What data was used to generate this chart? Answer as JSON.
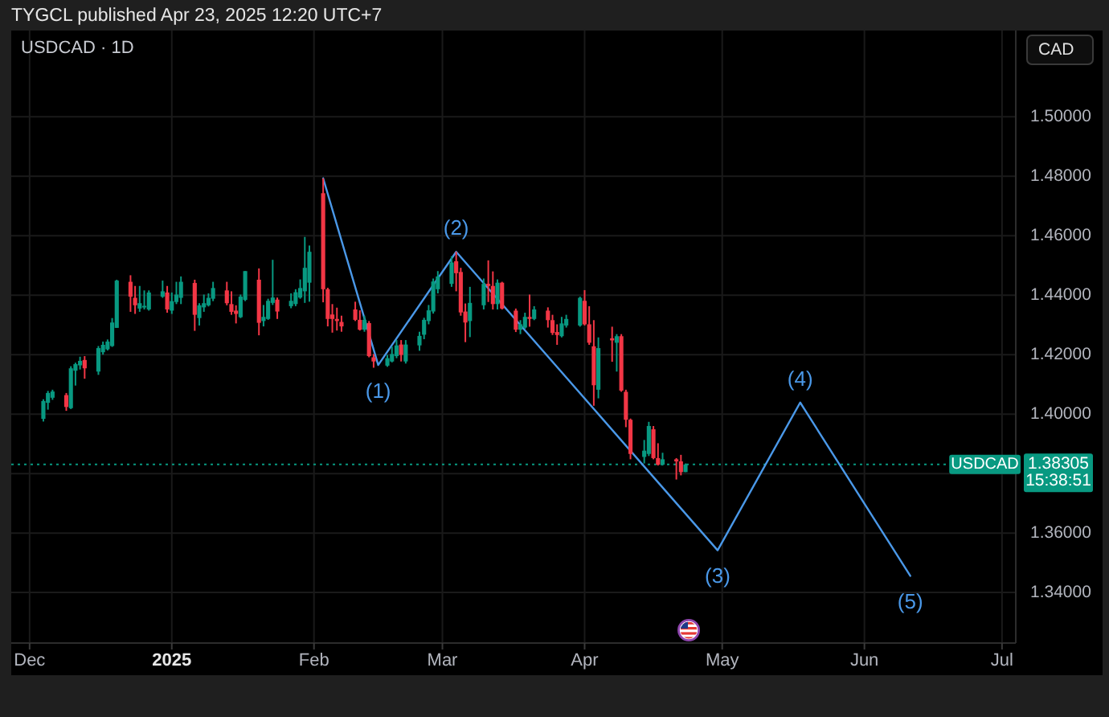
{
  "chart_data": {
    "type": "candlestick",
    "title": "USDCAD · 1D",
    "ylabel": "CAD",
    "x": [
      "2024-12-04",
      "2024-12-05",
      "2024-12-06",
      "2024-12-09",
      "2024-12-10",
      "2024-12-11",
      "2024-12-12",
      "2024-12-13",
      "2024-12-16",
      "2024-12-17",
      "2024-12-18",
      "2024-12-19",
      "2024-12-20",
      "2024-12-23",
      "2024-12-24",
      "2024-12-25",
      "2024-12-26",
      "2024-12-27",
      "2024-12-30",
      "2024-12-31",
      "2025-01-01",
      "2025-01-02",
      "2025-01-03",
      "2025-01-06",
      "2025-01-07",
      "2025-01-08",
      "2025-01-09",
      "2025-01-10",
      "2025-01-13",
      "2025-01-14",
      "2025-01-15",
      "2025-01-16",
      "2025-01-17",
      "2025-01-20",
      "2025-01-21",
      "2025-01-22",
      "2025-01-23",
      "2025-01-24",
      "2025-01-27",
      "2025-01-28",
      "2025-01-29",
      "2025-01-30",
      "2025-01-31",
      "2025-02-03",
      "2025-02-04",
      "2025-02-05",
      "2025-02-06",
      "2025-02-07",
      "2025-02-10",
      "2025-02-11",
      "2025-02-12",
      "2025-02-13",
      "2025-02-14",
      "2025-02-17",
      "2025-02-18",
      "2025-02-19",
      "2025-02-20",
      "2025-02-21",
      "2025-02-24",
      "2025-02-25",
      "2025-02-26",
      "2025-02-27",
      "2025-02-28",
      "2025-03-03",
      "2025-03-04",
      "2025-03-05",
      "2025-03-06",
      "2025-03-07",
      "2025-03-10",
      "2025-03-11",
      "2025-03-12",
      "2025-03-13",
      "2025-03-14",
      "2025-03-17",
      "2025-03-18",
      "2025-03-19",
      "2025-03-20",
      "2025-03-21",
      "2025-03-24",
      "2025-03-25",
      "2025-03-26",
      "2025-03-27",
      "2025-03-28",
      "2025-03-31",
      "2025-04-01",
      "2025-04-02",
      "2025-04-03",
      "2025-04-04",
      "2025-04-07",
      "2025-04-08",
      "2025-04-09",
      "2025-04-10",
      "2025-04-11",
      "2025-04-14",
      "2025-04-15",
      "2025-04-16",
      "2025-04-17",
      "2025-04-18",
      "2025-04-21",
      "2025-04-22",
      "2025-04-23"
    ],
    "ohlc": [
      [
        1.3984,
        1.405,
        1.3975,
        1.4044
      ],
      [
        1.4038,
        1.4078,
        1.4015,
        1.4071
      ],
      [
        1.4055,
        1.4082,
        1.4048,
        1.4076
      ],
      [
        1.4064,
        1.4071,
        1.4011,
        1.4024
      ],
      [
        1.402,
        1.4161,
        1.4017,
        1.4154
      ],
      [
        1.4146,
        1.4173,
        1.4096,
        1.4168
      ],
      [
        1.4164,
        1.4193,
        1.415,
        1.4179
      ],
      [
        1.4182,
        1.4195,
        1.4119,
        1.4154
      ],
      [
        1.4143,
        1.4229,
        1.4132,
        1.4222
      ],
      [
        1.4208,
        1.4244,
        1.42,
        1.4233
      ],
      [
        1.4218,
        1.4251,
        1.4214,
        1.4244
      ],
      [
        1.4229,
        1.4323,
        1.4226,
        1.4308
      ],
      [
        1.429,
        1.4452,
        1.429,
        1.4449
      ],
      [
        1.4445,
        1.4467,
        1.4344,
        1.4395
      ],
      [
        1.4391,
        1.4431,
        1.4337,
        1.4366
      ],
      [
        1.4355,
        1.4431,
        1.4344,
        1.4373
      ],
      [
        1.4362,
        1.4416,
        1.4352,
        1.4364
      ],
      [
        1.4352,
        1.4416,
        1.4348,
        1.4409
      ],
      [
        1.4395,
        1.4449,
        1.4391,
        1.4413
      ],
      [
        1.4409,
        1.4431,
        1.4341,
        1.4352
      ],
      [
        1.4348,
        1.4409,
        1.4337,
        1.438
      ],
      [
        1.4377,
        1.4445,
        1.437,
        1.4402
      ],
      [
        1.4391,
        1.4463,
        1.437,
        1.4445
      ],
      [
        1.4441,
        1.4452,
        1.428,
        1.4334
      ],
      [
        1.4323,
        1.4373,
        1.4298,
        1.4366
      ],
      [
        1.4359,
        1.4402,
        1.4344,
        1.4373
      ],
      [
        1.4366,
        1.4406,
        1.4362,
        1.4391
      ],
      [
        1.4388,
        1.4445,
        1.438,
        1.4424
      ],
      [
        1.4416,
        1.4445,
        1.4366,
        1.4373
      ],
      [
        1.437,
        1.4413,
        1.4334,
        1.4344
      ],
      [
        1.4348,
        1.4366,
        1.4305,
        1.4337
      ],
      [
        1.4326,
        1.4402,
        1.4323,
        1.4395
      ],
      [
        1.4384,
        1.4481,
        1.438,
        1.4481
      ],
      [
        1.4452,
        1.449,
        1.4265,
        1.4307
      ],
      [
        1.4313,
        1.4367,
        1.4295,
        1.4327
      ],
      [
        1.432,
        1.4388,
        1.4317,
        1.4381
      ],
      [
        1.4374,
        1.4519,
        1.4367,
        1.4392
      ],
      [
        1.4385,
        1.4392,
        1.432,
        1.4345
      ],
      [
        1.4363,
        1.4406,
        1.4356,
        1.4381
      ],
      [
        1.437,
        1.442,
        1.4363,
        1.441
      ],
      [
        1.4392,
        1.4453,
        1.4388,
        1.4424
      ],
      [
        1.4413,
        1.4596,
        1.4374,
        1.4492
      ],
      [
        1.4442,
        1.4567,
        1.4378,
        1.4546
      ],
      [
        1.4743,
        1.4793,
        1.4376,
        1.442
      ],
      [
        1.442,
        1.4425,
        1.4295,
        1.432
      ],
      [
        1.4335,
        1.437,
        1.4274,
        1.432
      ],
      [
        1.432,
        1.4358,
        1.4281,
        1.4313
      ],
      [
        1.431,
        1.4331,
        1.4277,
        1.4295
      ],
      [
        1.4352,
        1.4378,
        1.4313,
        1.4317
      ],
      [
        1.4317,
        1.4349,
        1.4281,
        1.4284
      ],
      [
        1.4284,
        1.4331,
        1.4277,
        1.4317
      ],
      [
        1.4306,
        1.4313,
        1.4191,
        1.4195
      ],
      [
        1.4191,
        1.4202,
        1.4156,
        1.4177
      ],
      [
        1.4163,
        1.4199,
        1.4159,
        1.4188
      ],
      [
        1.4177,
        1.4227,
        1.4174,
        1.4202
      ],
      [
        1.4195,
        1.4249,
        1.4188,
        1.4231
      ],
      [
        1.4234,
        1.4249,
        1.4177,
        1.4199
      ],
      [
        1.4177,
        1.4249,
        1.417,
        1.4234
      ],
      [
        1.4231,
        1.4277,
        1.4213,
        1.4263
      ],
      [
        1.4267,
        1.4324,
        1.4252,
        1.4317
      ],
      [
        1.4313,
        1.4367,
        1.4302,
        1.4349
      ],
      [
        1.4345,
        1.4456,
        1.4338,
        1.4446
      ],
      [
        1.442,
        1.4481,
        1.4406,
        1.4463
      ],
      [
        1.4438,
        1.4531,
        1.4428,
        1.451
      ],
      [
        1.4514,
        1.4546,
        1.4413,
        1.4474
      ],
      [
        1.4478,
        1.4492,
        1.4331,
        1.4342
      ],
      [
        1.4345,
        1.4372,
        1.4242,
        1.4308
      ],
      [
        1.4313,
        1.4428,
        1.4259,
        1.4374
      ],
      [
        1.4366,
        1.4456,
        1.4352,
        1.4438
      ],
      [
        1.4438,
        1.4517,
        1.4377,
        1.4431
      ],
      [
        1.4431,
        1.448,
        1.4352,
        1.437
      ],
      [
        1.437,
        1.4453,
        1.4352,
        1.4442
      ],
      [
        1.4442,
        1.4445,
        1.4352,
        1.4355
      ],
      [
        1.4348,
        1.4355,
        1.4276,
        1.4284
      ],
      [
        1.4284,
        1.4316,
        1.4269,
        1.4302
      ],
      [
        1.4291,
        1.4341,
        1.4287,
        1.4327
      ],
      [
        1.4327,
        1.4402,
        1.4294,
        1.432
      ],
      [
        1.432,
        1.4363,
        1.4316,
        1.4352
      ],
      [
        1.4348,
        1.4359,
        1.4291,
        1.4316
      ],
      [
        1.4316,
        1.4334,
        1.4266,
        1.4273
      ],
      [
        1.4276,
        1.4302,
        1.4233,
        1.4266
      ],
      [
        1.4262,
        1.4327,
        1.4258,
        1.4305
      ],
      [
        1.4298,
        1.4334,
        1.4291,
        1.432
      ],
      [
        1.4298,
        1.4395,
        1.4294,
        1.4391
      ],
      [
        1.4381,
        1.4417,
        1.4298,
        1.4302
      ],
      [
        1.4302,
        1.4363,
        1.4233,
        1.424
      ],
      [
        1.4228,
        1.4316,
        1.4028,
        1.4097
      ],
      [
        1.4082,
        1.4258,
        1.4053,
        1.4222
      ],
      [
        1.4255,
        1.4294,
        1.4176,
        1.4248
      ],
      [
        1.424,
        1.4269,
        1.4143,
        1.4262
      ],
      [
        1.4262,
        1.4269,
        1.4075,
        1.4079
      ],
      [
        1.4075,
        1.4082,
        1.3956,
        1.3981
      ],
      [
        1.3981,
        1.3985,
        1.3848,
        1.3866
      ],
      [
        1.3856,
        1.3913,
        1.3834,
        1.3877
      ],
      [
        1.3866,
        1.3974,
        1.3859,
        1.396
      ],
      [
        1.3949,
        1.396,
        1.3848,
        1.3852
      ],
      [
        1.3852,
        1.3902,
        1.3827,
        1.383
      ],
      [
        1.383,
        1.387,
        1.3827,
        1.3848
      ],
      [
        1.3848,
        1.3852,
        1.378,
        1.3841
      ],
      [
        1.3841,
        1.3863,
        1.3794,
        1.3805
      ],
      [
        1.3805,
        1.3834,
        1.3805,
        1.38305
      ]
    ],
    "colors": [
      "#089981",
      "#089981",
      "#089981",
      "#f23645",
      "#089981",
      "#089981",
      "#089981",
      "#f23645",
      "#089981",
      "#089981",
      "#089981",
      "#089981",
      "#089981",
      "#f23645",
      "#f23645",
      "#089981",
      "#089981",
      "#089981",
      "#089981",
      "#f23645",
      "#089981",
      "#089981",
      "#089981",
      "#f23645",
      "#089981",
      "#089981",
      "#089981",
      "#089981",
      "#f23645",
      "#f23645",
      "#f23645",
      "#089981",
      "#089981",
      "#f23645",
      "#089981",
      "#089981",
      "#089981",
      "#f23645",
      "#089981",
      "#089981",
      "#089981",
      "#089981",
      "#089981",
      "#f23645",
      "#f23645",
      "#f23645",
      "#f23645",
      "#f23645",
      "#f23645",
      "#f23645",
      "#089981",
      "#f23645",
      "#f23645",
      "#089981",
      "#089981",
      "#089981",
      "#f23645",
      "#089981",
      "#089981",
      "#089981",
      "#089981",
      "#089981",
      "#089981",
      "#089981",
      "#f23645",
      "#f23645",
      "#f23645",
      "#089981",
      "#089981",
      "#f23645",
      "#f23645",
      "#089981",
      "#f23645",
      "#f23645",
      "#089981",
      "#089981",
      "#f23645",
      "#089981",
      "#f23645",
      "#f23645",
      "#f23645",
      "#089981",
      "#089981",
      "#089981",
      "#f23645",
      "#f23645",
      "#f23645",
      "#089981",
      "#f23645",
      "#089981",
      "#f23645",
      "#f23645",
      "#f23645",
      "#089981",
      "#089981",
      "#f23645",
      "#f23645",
      "#089981",
      "#f23645",
      "#f23645",
      "#089981"
    ],
    "series": [
      {
        "type": "line",
        "color": "#4a98e8",
        "x": [
          "2025-02-03",
          "2025-02-15",
          "2025-03-04",
          "2025-04-30",
          "2025-05-18",
          "2025-06-11"
        ],
        "values": [
          1.4793,
          1.4165,
          1.4546,
          1.3542,
          1.4039,
          1.3456
        ]
      }
    ],
    "xlim": [
      "2024-11-27",
      "2025-07-04"
    ],
    "xticks": [
      {
        "value": "2024-12-01",
        "label": "Dec"
      },
      {
        "value": "2025-01-01",
        "label": "2025"
      },
      {
        "value": "2025-02-01",
        "label": "Feb"
      },
      {
        "value": "2025-03-01",
        "label": "Mar"
      },
      {
        "value": "2025-04-01",
        "label": "Apr"
      },
      {
        "value": "2025-05-01",
        "label": "May"
      },
      {
        "value": "2025-06-01",
        "label": "Jun"
      },
      {
        "value": "2025-07-01",
        "label": "Jul"
      }
    ],
    "ylim": [
      1.323,
      1.529
    ],
    "yticks": [
      {
        "value": 1.34,
        "label": "1.34000"
      },
      {
        "value": 1.36,
        "label": "1.36000"
      },
      {
        "value": 1.38,
        "label": null
      },
      {
        "value": 1.4,
        "label": "1.40000"
      },
      {
        "value": 1.42,
        "label": "1.42000"
      },
      {
        "value": 1.44,
        "label": "1.44000"
      },
      {
        "value": 1.46,
        "label": "1.46000"
      },
      {
        "value": 1.48,
        "label": "1.48000"
      },
      {
        "value": 1.5,
        "label": "1.50000"
      }
    ],
    "grid": true,
    "ref_lines": [
      {
        "axis": "y",
        "value": 1.38305,
        "label": "USDCAD",
        "color": "#089981",
        "line_style": "dotted"
      }
    ],
    "annotations": [
      "TYGCL published Apr 23, 2025 12:20 UTC+7",
      "1.38305",
      "15:38:51",
      {
        "text": "(1)",
        "x": "2025-02-15",
        "y": 1.4165
      },
      {
        "text": "(2)",
        "x": "2025-03-04",
        "y": 1.4546
      },
      {
        "text": "(3)",
        "x": "2025-04-30",
        "y": 1.3542
      },
      {
        "text": "(4)",
        "x": "2025-05-18",
        "y": 1.4039
      },
      {
        "text": "(5)",
        "x": "2025-06-11",
        "y": 1.3456
      }
    ]
  }
}
